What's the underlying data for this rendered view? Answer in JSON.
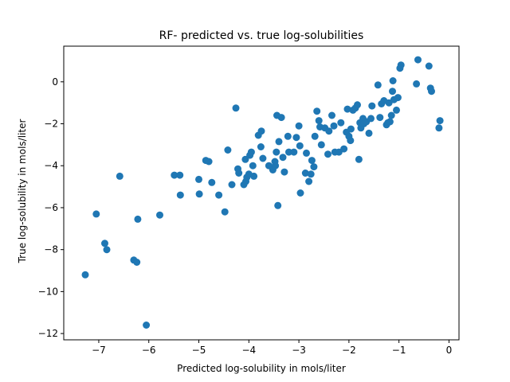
{
  "chart_data": {
    "type": "scatter",
    "title": "RF- predicted vs. true log-solubilities",
    "xlabel": "Predicted log-solubility in mols/liter",
    "ylabel": "True log-solubility in mols/liter",
    "xlim": [
      -7.7,
      0.2
    ],
    "ylim": [
      -12.3,
      1.7
    ],
    "xticks": [
      -7,
      -6,
      -5,
      -4,
      -3,
      -2,
      -1,
      0
    ],
    "yticks": [
      -12,
      -10,
      -8,
      -6,
      -4,
      -2,
      0
    ],
    "marker_color": "#1f77b4",
    "grid": false,
    "legend": "none",
    "points": [
      [
        -7.27,
        -9.2
      ],
      [
        -7.05,
        -6.3
      ],
      [
        -6.88,
        -7.7
      ],
      [
        -6.84,
        -8.0
      ],
      [
        -6.58,
        -4.5
      ],
      [
        -6.3,
        -8.5
      ],
      [
        -6.24,
        -8.6
      ],
      [
        -6.22,
        -6.55
      ],
      [
        -6.05,
        -11.6
      ],
      [
        -5.78,
        -6.35
      ],
      [
        -5.49,
        -4.45
      ],
      [
        -5.38,
        -4.45
      ],
      [
        -5.37,
        -5.4
      ],
      [
        -5.0,
        -4.65
      ],
      [
        -4.99,
        -5.35
      ],
      [
        -4.86,
        -3.75
      ],
      [
        -4.8,
        -3.8
      ],
      [
        -4.74,
        -4.8
      ],
      [
        -4.6,
        -5.4
      ],
      [
        -4.48,
        -6.2
      ],
      [
        -4.42,
        -3.25
      ],
      [
        -4.34,
        -4.9
      ],
      [
        -4.26,
        -1.25
      ],
      [
        -4.22,
        -4.15
      ],
      [
        -4.2,
        -4.35
      ],
      [
        -4.1,
        -4.9
      ],
      [
        -4.07,
        -3.7
      ],
      [
        -4.06,
        -4.75
      ],
      [
        -4.04,
        -4.55
      ],
      [
        -4.0,
        -4.4
      ],
      [
        -3.98,
        -3.5
      ],
      [
        -3.95,
        -3.35
      ],
      [
        -3.92,
        -4.0
      ],
      [
        -3.9,
        -4.5
      ],
      [
        -3.81,
        -2.55
      ],
      [
        -3.76,
        -3.1
      ],
      [
        -3.75,
        -2.35
      ],
      [
        -3.72,
        -3.65
      ],
      [
        -3.6,
        -4.0
      ],
      [
        -3.52,
        -4.2
      ],
      [
        -3.48,
        -3.8
      ],
      [
        -3.47,
        -4.0
      ],
      [
        -3.45,
        -3.35
      ],
      [
        -3.44,
        -1.6
      ],
      [
        -3.42,
        -5.9
      ],
      [
        -3.4,
        -2.85
      ],
      [
        -3.35,
        -1.7
      ],
      [
        -3.32,
        -3.6
      ],
      [
        -3.29,
        -4.3
      ],
      [
        -3.22,
        -2.6
      ],
      [
        -3.2,
        -3.35
      ],
      [
        -3.1,
        -3.35
      ],
      [
        -3.05,
        -2.65
      ],
      [
        -3.0,
        -2.1
      ],
      [
        -2.98,
        -3.05
      ],
      [
        -2.97,
        -5.3
      ],
      [
        -2.87,
        -4.35
      ],
      [
        -2.85,
        -3.4
      ],
      [
        -2.8,
        -4.75
      ],
      [
        -2.76,
        -4.4
      ],
      [
        -2.74,
        -3.75
      ],
      [
        -2.7,
        -4.05
      ],
      [
        -2.68,
        -2.6
      ],
      [
        -2.64,
        -1.4
      ],
      [
        -2.6,
        -1.85
      ],
      [
        -2.58,
        -2.15
      ],
      [
        -2.55,
        -3.0
      ],
      [
        -2.48,
        -2.2
      ],
      [
        -2.42,
        -3.45
      ],
      [
        -2.4,
        -2.35
      ],
      [
        -2.34,
        -1.6
      ],
      [
        -2.3,
        -2.1
      ],
      [
        -2.28,
        -3.35
      ],
      [
        -2.2,
        -3.35
      ],
      [
        -2.16,
        -1.95
      ],
      [
        -2.1,
        -3.2
      ],
      [
        -2.05,
        -2.4
      ],
      [
        -2.03,
        -1.3
      ],
      [
        -2.0,
        -2.6
      ],
      [
        -1.97,
        -2.8
      ],
      [
        -1.96,
        -2.25
      ],
      [
        -1.92,
        -1.35
      ],
      [
        -1.87,
        -1.25
      ],
      [
        -1.83,
        -1.1
      ],
      [
        -1.8,
        -3.7
      ],
      [
        -1.78,
        -1.95
      ],
      [
        -1.76,
        -2.2
      ],
      [
        -1.72,
        -1.75
      ],
      [
        -1.7,
        -2.0
      ],
      [
        -1.65,
        -1.9
      ],
      [
        -1.6,
        -2.45
      ],
      [
        -1.56,
        -1.75
      ],
      [
        -1.54,
        -1.15
      ],
      [
        -1.42,
        -0.15
      ],
      [
        -1.38,
        -1.7
      ],
      [
        -1.35,
        -1.05
      ],
      [
        -1.3,
        -0.9
      ],
      [
        -1.25,
        -2.05
      ],
      [
        -1.22,
        -1.95
      ],
      [
        -1.2,
        -1.0
      ],
      [
        -1.18,
        -1.9
      ],
      [
        -1.15,
        -1.6
      ],
      [
        -1.13,
        -0.45
      ],
      [
        -1.12,
        0.05
      ],
      [
        -1.1,
        -0.85
      ],
      [
        -1.05,
        -1.35
      ],
      [
        -1.02,
        -0.75
      ],
      [
        -0.98,
        0.65
      ],
      [
        -0.96,
        0.8
      ],
      [
        -0.65,
        -0.1
      ],
      [
        -0.62,
        1.05
      ],
      [
        -0.4,
        0.75
      ],
      [
        -0.37,
        -0.3
      ],
      [
        -0.35,
        -0.45
      ],
      [
        -0.2,
        -2.2
      ],
      [
        -0.18,
        -1.85
      ]
    ]
  }
}
